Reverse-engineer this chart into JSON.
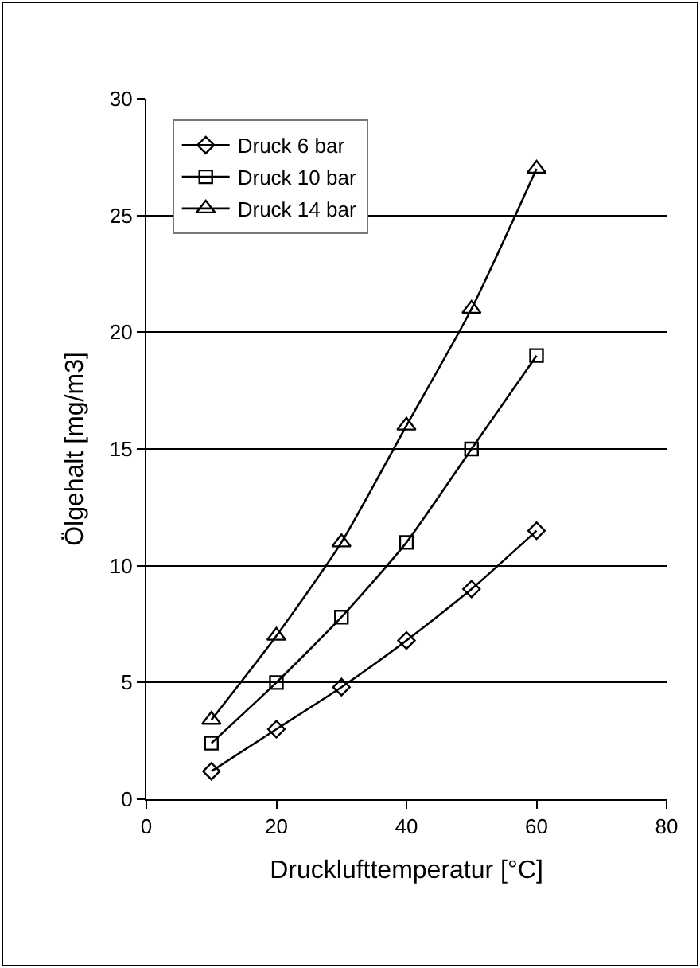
{
  "chart_data": {
    "type": "line",
    "xlabel": "Drucklufttemperatur [°C]",
    "ylabel": "Ölgehalt [mg/m3]",
    "x": [
      10,
      20,
      30,
      40,
      50,
      60
    ],
    "series": [
      {
        "name": "Druck 6 bar",
        "color": "#000000",
        "marker": "diamond",
        "values": [
          1.2,
          3.0,
          4.8,
          6.8,
          9.0,
          11.5
        ]
      },
      {
        "name": "Druck 10 bar",
        "color": "#000000",
        "marker": "square",
        "values": [
          2.4,
          5.0,
          7.8,
          11.0,
          15.0,
          19.0
        ]
      },
      {
        "name": "Druck 14 bar",
        "color": "#000000",
        "marker": "triangle",
        "values": [
          3.4,
          7.0,
          11.0,
          16.0,
          21.0,
          27.0
        ]
      }
    ],
    "xlim": [
      0,
      80
    ],
    "xticks": [
      0,
      20,
      40,
      60,
      80
    ],
    "ylim": [
      0,
      30
    ],
    "yticks": [
      0,
      5,
      10,
      15,
      20,
      25,
      30
    ],
    "grid": "y",
    "legend": "top left",
    "line_style": "solid"
  }
}
